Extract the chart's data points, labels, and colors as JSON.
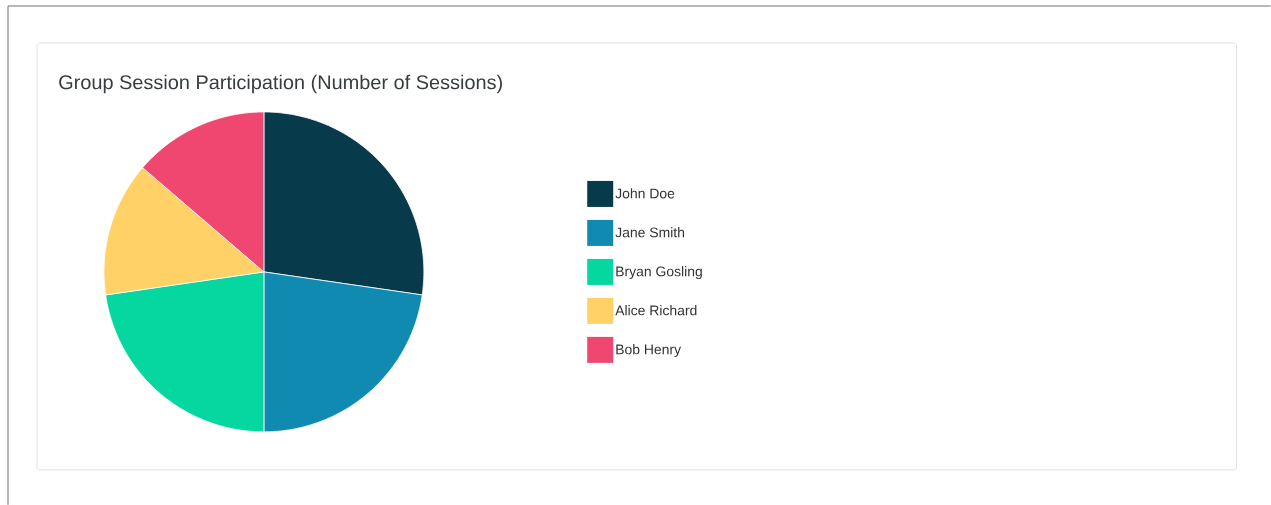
{
  "chart_data": {
    "type": "pie",
    "title": "Group Session Participation (Number of Sessions)",
    "categories": [
      "John Doe",
      "Jane Smith",
      "Bryan Gosling",
      "Alice Richard",
      "Bob Henry"
    ],
    "values": [
      27.3,
      22.7,
      22.7,
      13.6,
      13.7
    ],
    "colors": [
      "#073b4c",
      "#118ab2",
      "#06d6a0",
      "#ffd166",
      "#ef476f"
    ],
    "legend": "right"
  }
}
